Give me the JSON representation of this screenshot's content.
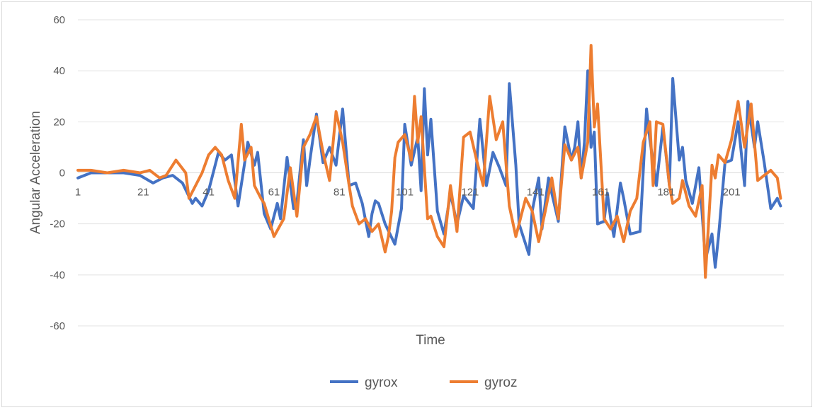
{
  "chart_data": {
    "type": "line",
    "title": "",
    "xlabel": "Time",
    "ylabel": "Angular Acceleration",
    "ylim": [
      -60,
      60
    ],
    "yticks": [
      "60",
      "40",
      "20",
      "0",
      "-20",
      "-40",
      "-60"
    ],
    "xticks": [
      "1",
      "21",
      "41",
      "61",
      "81",
      "101",
      "121",
      "141",
      "161",
      "181",
      "201"
    ],
    "grid": "horizontal",
    "legend": "bottom",
    "series": [
      {
        "name": "gyrox",
        "color": "#4472C4",
        "x": [
          1,
          5,
          10,
          15,
          20,
          24,
          27,
          30,
          33,
          36,
          37,
          39,
          41,
          44,
          46,
          48,
          50,
          53,
          55,
          56,
          58,
          60,
          62,
          63,
          65,
          67,
          68,
          69,
          70,
          71,
          72,
          74,
          76,
          78,
          80,
          82,
          84,
          86,
          88,
          90,
          91,
          92,
          93,
          95,
          98,
          100,
          101,
          103,
          105,
          106,
          107,
          108,
          109,
          111,
          113,
          115,
          117,
          119,
          122,
          124,
          126,
          128,
          130,
          132,
          133,
          135,
          136,
          139,
          140,
          142,
          143,
          145,
          146,
          148,
          150,
          152,
          153,
          154,
          155,
          156,
          157,
          158,
          159,
          160,
          162,
          163,
          164,
          165,
          167,
          168,
          170,
          173,
          175,
          176,
          178,
          180,
          182,
          183,
          185,
          186,
          187,
          189,
          191,
          193,
          195,
          196,
          197,
          199,
          201,
          203,
          205,
          206,
          208,
          209,
          211,
          213,
          215,
          216
        ],
        "values": [
          -2,
          0,
          0,
          0,
          -1,
          -4,
          -2,
          -1,
          -4,
          -12,
          -10,
          -13,
          -7,
          8,
          5,
          7,
          -13,
          12,
          3,
          8,
          -16,
          -22,
          -12,
          -18,
          6,
          -14,
          -12,
          1,
          13,
          -5,
          5,
          23,
          4,
          10,
          3,
          25,
          -5,
          -4,
          -12,
          -25,
          -16,
          -11,
          -12,
          -20,
          -28,
          -14,
          19,
          3,
          14,
          -7,
          33,
          7,
          21,
          -15,
          -24,
          -8,
          -20,
          -9,
          -14,
          21,
          -5,
          8,
          2,
          -5,
          35,
          3,
          -20,
          -32,
          -15,
          -2,
          -22,
          -2,
          -8,
          -19,
          18,
          5,
          10,
          20,
          -2,
          12,
          40,
          10,
          16,
          -20,
          -19,
          -8,
          -18,
          -25,
          -4,
          -10,
          -24,
          -23,
          25,
          13,
          -5,
          18,
          -5,
          37,
          5,
          10,
          -3,
          -12,
          2,
          -34,
          -24,
          -37,
          -25,
          4,
          5,
          20,
          -5,
          28,
          10,
          20,
          4,
          -14,
          -10,
          -13
        ]
      },
      {
        "name": "gyroz",
        "color": "#ED7D31",
        "x": [
          1,
          5,
          10,
          15,
          20,
          23,
          26,
          28,
          31,
          34,
          35,
          37,
          39,
          41,
          43,
          45,
          47,
          49,
          51,
          52,
          54,
          55,
          57,
          58,
          61,
          64,
          66,
          68,
          70,
          72,
          74,
          76,
          78,
          80,
          82,
          84,
          85,
          87,
          89,
          91,
          93,
          95,
          96,
          97,
          98,
          99,
          101,
          103,
          104,
          105,
          106,
          108,
          109,
          111,
          113,
          115,
          117,
          119,
          121,
          123,
          125,
          127,
          129,
          131,
          133,
          135,
          136,
          137,
          138,
          140,
          142,
          144,
          146,
          148,
          150,
          152,
          154,
          155,
          157,
          158,
          159,
          160,
          162,
          164,
          166,
          168,
          170,
          172,
          174,
          176,
          177,
          178,
          180,
          182,
          183,
          185,
          186,
          188,
          190,
          192,
          193,
          195,
          196,
          197,
          199,
          201,
          203,
          205,
          207,
          209,
          211,
          213,
          215,
          216
        ],
        "values": [
          1,
          1,
          0,
          1,
          0,
          1,
          -2,
          -1,
          5,
          0,
          -10,
          -5,
          0,
          7,
          10,
          7,
          -3,
          -10,
          19,
          5,
          10,
          -5,
          -10,
          -12,
          -25,
          -18,
          2,
          -17,
          10,
          15,
          22,
          8,
          -3,
          24,
          12,
          -5,
          -13,
          -20,
          -18,
          -23,
          -20,
          -31,
          -25,
          -15,
          6,
          12,
          15,
          5,
          30,
          12,
          22,
          -18,
          -17,
          -25,
          -29,
          -5,
          -23,
          14,
          16,
          5,
          -5,
          30,
          13,
          20,
          -13,
          -25,
          -20,
          -15,
          -10,
          -15,
          -27,
          -15,
          -2,
          -18,
          11,
          5,
          10,
          -2,
          12,
          50,
          18,
          27,
          -18,
          -22,
          -17,
          -27,
          -15,
          -10,
          12,
          20,
          -5,
          20,
          19,
          -5,
          -12,
          -10,
          -3,
          -13,
          -17,
          -5,
          -41,
          3,
          -2,
          7,
          4,
          13,
          28,
          10,
          27,
          -3,
          -1,
          1,
          -2,
          -10
        ]
      }
    ]
  }
}
